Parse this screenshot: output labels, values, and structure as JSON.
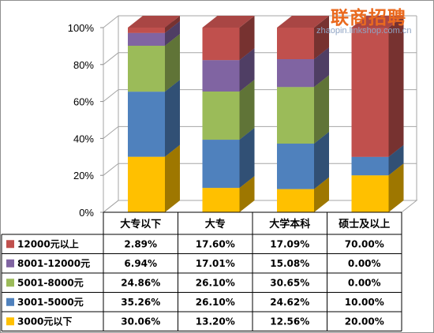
{
  "watermark": {
    "brand": "联商招聘",
    "url": "zhaopin.linkshop.com.cn"
  },
  "colors": {
    "12000元以上": "#c0504d",
    "8001-12000元": "#8064a2",
    "5001-8000元": "#9bbb59",
    "3001-5000元": "#4f81bd",
    "3000元以下": "#ffc000"
  },
  "chart_data": {
    "type": "bar",
    "stacked": true,
    "percent_stacked": true,
    "three_d": true,
    "categories": [
      "大专以下",
      "大专",
      "大学本科",
      "硕士及以上"
    ],
    "yticks": [
      "0%",
      "20%",
      "40%",
      "60%",
      "80%",
      "100%"
    ],
    "ylim": [
      0,
      100
    ],
    "grid": true,
    "legend": "data-table-below",
    "series": [
      {
        "name": "3000元以下",
        "values": [
          30.06,
          13.2,
          12.56,
          20.0
        ],
        "labels": [
          "30.06%",
          "13.20%",
          "12.56%",
          "20.00%"
        ]
      },
      {
        "name": "3001-5000元",
        "values": [
          35.26,
          26.1,
          24.62,
          10.0
        ],
        "labels": [
          "35.26%",
          "26.10%",
          "24.62%",
          "10.00%"
        ]
      },
      {
        "name": "5001-8000元",
        "values": [
          24.86,
          26.1,
          30.65,
          0.0
        ],
        "labels": [
          "24.86%",
          "26.10%",
          "30.65%",
          "0.00%"
        ]
      },
      {
        "name": "8001-12000元",
        "values": [
          6.94,
          17.01,
          15.08,
          0.0
        ],
        "labels": [
          "6.94%",
          "17.01%",
          "15.08%",
          "0.00%"
        ]
      },
      {
        "name": "12000元以上",
        "values": [
          2.89,
          17.6,
          17.09,
          70.0
        ],
        "labels": [
          "2.89%",
          "17.60%",
          "17.09%",
          "70.00%"
        ]
      }
    ],
    "table_row_order": [
      "12000元以上",
      "8001-12000元",
      "5001-8000元",
      "3001-5000元",
      "3000元以下"
    ]
  }
}
